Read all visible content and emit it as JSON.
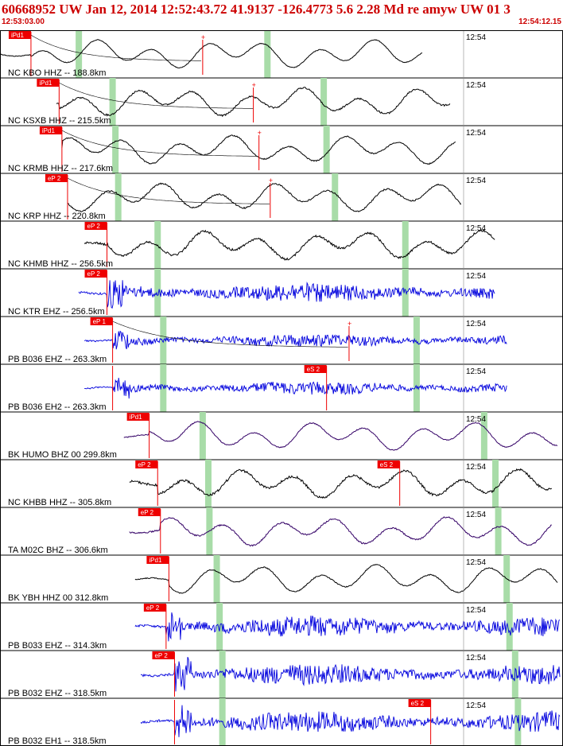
{
  "header": {
    "title": "60668952 UW Jan 12, 2014 12:52:43.72   41.9137 -126.4773  5.6 2.28 Md re amyw UW 01   3",
    "start_time": "12:53:03.00",
    "end_time": "12:54:12.15"
  },
  "colors": {
    "header": "#cc0000",
    "pick": "#ee0000",
    "short_period": "#0000dd",
    "broadband": "#000000",
    "purple": "#330066",
    "window": "#a8dca8"
  },
  "chart_data": {
    "type": "line",
    "title": "",
    "minute_label": "12:54",
    "traces": [
      {
        "label": "NC KBO HHZ -- 188.8km",
        "color": "black",
        "noise": 0.15,
        "start": 0.0,
        "end": 0.75,
        "picks": [
          {
            "t": 0.055,
            "name": "iPd1",
            "solid": true
          }
        ],
        "green": [
          0.14,
          0.475
        ],
        "coda": 0.36
      },
      {
        "label": "NC KSXB HHZ -- 215.5km",
        "color": "black",
        "noise": 0.35,
        "start": 0.1,
        "end": 0.8,
        "picks": [
          {
            "t": 0.105,
            "name": "iPd1",
            "solid": true
          }
        ],
        "green": [
          0.2,
          0.575
        ],
        "coda": 0.45
      },
      {
        "label": "NC KRMB HHZ -- 217.6km",
        "color": "black",
        "noise": 0.25,
        "start": 0.11,
        "end": 0.81,
        "picks": [
          {
            "t": 0.11,
            "name": "iPd1",
            "solid": true
          }
        ],
        "green": [
          0.205,
          0.58
        ],
        "coda": 0.46
      },
      {
        "label": "NC KRP HHZ -- 220.8km",
        "color": "black",
        "noise": 0.3,
        "start": 0.12,
        "end": 0.82,
        "picks": [
          {
            "t": 0.12,
            "name": "eP 2",
            "solid": true
          }
        ],
        "green": [
          0.21,
          0.595
        ],
        "coda": 0.48
      },
      {
        "label": "NC KHMB HHZ -- 256.5km",
        "color": "black",
        "noise": 0.45,
        "start": 0.15,
        "end": 0.88,
        "picks": [
          {
            "t": 0.19,
            "name": "eP 2",
            "solid": true
          }
        ],
        "green": [
          0.28,
          0.72
        ]
      },
      {
        "label": "NC KTR EHZ -- 256.5km",
        "color": "blue",
        "noise": 0.9,
        "start": 0.14,
        "end": 0.88,
        "picks": [
          {
            "t": 0.19,
            "name": "eP 2",
            "solid": true
          }
        ],
        "green": [
          0.28,
          0.72
        ]
      },
      {
        "label": "PB B036 EHZ -- 263.3km",
        "color": "blue",
        "noise": 0.6,
        "start": 0.15,
        "end": 0.9,
        "picks": [
          {
            "t": 0.2,
            "name": "eP 1",
            "solid": true
          }
        ],
        "green": [
          0.29,
          0.74
        ],
        "coda": 0.62
      },
      {
        "label": "PB B036 EH2 -- 263.3km",
        "color": "blue",
        "noise": 0.6,
        "start": 0.15,
        "end": 0.9,
        "picks": [
          {
            "t": 0.2,
            "name": "",
            "solid": false
          },
          {
            "t": 0.58,
            "name": "eS 2",
            "solid": true
          }
        ],
        "green": [
          0.29,
          0.74
        ]
      },
      {
        "label": "BK HUMO BHZ 00 299.8km",
        "color": "purple",
        "noise": 0.2,
        "start": 0.22,
        "end": 0.99,
        "picks": [
          {
            "t": 0.265,
            "name": "iPd1",
            "solid": true
          }
        ],
        "green": [
          0.36,
          0.86
        ]
      },
      {
        "label": "NC KHBB HHZ -- 305.8km",
        "color": "black",
        "noise": 0.5,
        "start": 0.23,
        "end": 0.98,
        "picks": [
          {
            "t": 0.28,
            "name": "eP 2",
            "solid": true
          },
          {
            "t": 0.71,
            "name": "eS 2",
            "solid": true
          }
        ],
        "green": [
          0.37,
          0.88
        ]
      },
      {
        "label": "TA M02C BHZ -- 306.6km",
        "color": "purple",
        "noise": 0.3,
        "start": 0.23,
        "end": 0.98,
        "picks": [
          {
            "t": 0.285,
            "name": "eP 2",
            "solid": true
          }
        ],
        "green": [
          0.372,
          0.885
        ]
      },
      {
        "label": "BK YBH HHZ 00 312.8km",
        "color": "black",
        "noise": 0.2,
        "start": 0.24,
        "end": 0.99,
        "picks": [
          {
            "t": 0.3,
            "name": "iPd1",
            "solid": true
          }
        ],
        "green": [
          0.385,
          0.9
        ]
      },
      {
        "label": "PB B033 EHZ -- 314.3km",
        "color": "blue",
        "noise": 1.0,
        "start": 0.24,
        "end": 0.995,
        "picks": [
          {
            "t": 0.295,
            "name": "eP 2",
            "solid": true
          }
        ],
        "green": [
          0.39,
          0.905
        ]
      },
      {
        "label": "PB B032 EHZ -- 318.5km",
        "color": "blue",
        "noise": 1.0,
        "start": 0.25,
        "end": 0.995,
        "picks": [
          {
            "t": 0.31,
            "name": "eP 2",
            "solid": true
          }
        ],
        "green": [
          0.395,
          0.915
        ]
      },
      {
        "label": "PB B032 EH1 -- 318.5km",
        "color": "blue",
        "noise": 1.0,
        "start": 0.25,
        "end": 0.995,
        "picks": [
          {
            "t": 0.31,
            "name": "",
            "solid": false
          },
          {
            "t": 0.765,
            "name": "eS 2",
            "solid": true
          }
        ],
        "green": [
          0.395,
          0.92
        ]
      }
    ]
  }
}
